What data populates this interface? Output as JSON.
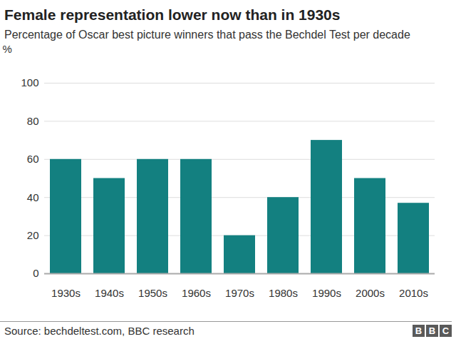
{
  "chart_data": {
    "type": "bar",
    "title": "Female representation lower now than in 1930s",
    "subtitle": "Percentage of Oscar best picture winners that pass the Bechdel Test per decade",
    "y_label": "%",
    "categories": [
      "1930s",
      "1940s",
      "1950s",
      "1960s",
      "1970s",
      "1980s",
      "1990s",
      "2000s",
      "2010s"
    ],
    "values": [
      60,
      50,
      60,
      60,
      20,
      40,
      70,
      50,
      37
    ],
    "color": "#138080",
    "ylim": [
      0,
      100
    ],
    "yticks": [
      0,
      20,
      40,
      60,
      80,
      100
    ],
    "grid": true,
    "source": "Source: bechdeltest.com, BBC research",
    "logo": "BBC"
  }
}
